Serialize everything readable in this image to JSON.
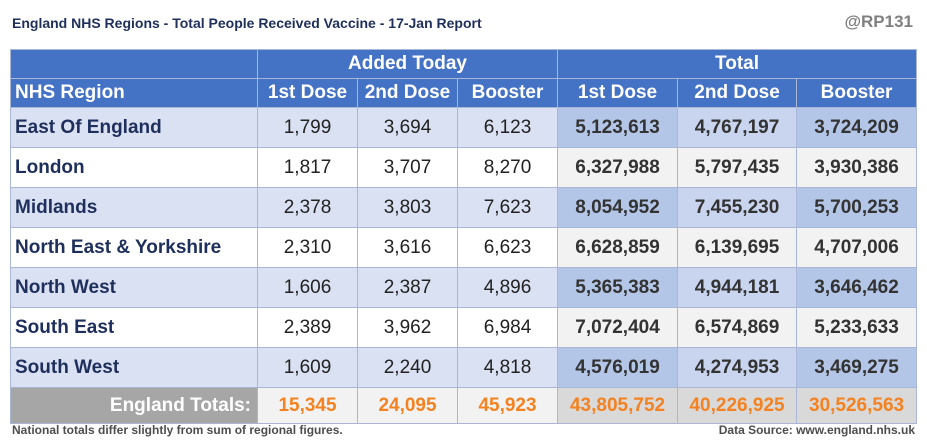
{
  "header": {
    "title": "England NHS Regions - Total People Received Vaccine - 17-Jan Report",
    "handle": "@RP131"
  },
  "table": {
    "group_added": "Added Today",
    "group_total": "Total",
    "columns": [
      "NHS Region",
      "1st Dose",
      "2nd Dose",
      "Booster",
      "1st Dose",
      "2nd Dose",
      "Booster"
    ],
    "rows": [
      [
        "East Of England",
        "1,799",
        "3,694",
        "6,123",
        "5,123,613",
        "4,767,197",
        "3,724,209"
      ],
      [
        "London",
        "1,817",
        "3,707",
        "8,270",
        "6,327,988",
        "5,797,435",
        "3,930,386"
      ],
      [
        "Midlands",
        "2,378",
        "3,803",
        "7,623",
        "8,054,952",
        "7,455,230",
        "5,700,253"
      ],
      [
        "North East & Yorkshire",
        "2,310",
        "3,616",
        "6,623",
        "6,628,859",
        "6,139,695",
        "4,707,006"
      ],
      [
        "North West",
        "1,606",
        "2,387",
        "4,896",
        "5,365,383",
        "4,944,181",
        "3,646,462"
      ],
      [
        "South East",
        "2,389",
        "3,962",
        "6,984",
        "7,072,404",
        "6,574,869",
        "5,233,633"
      ],
      [
        "South West",
        "1,609",
        "2,240",
        "4,818",
        "4,576,019",
        "4,274,953",
        "3,469,275"
      ]
    ],
    "totals": [
      "England Totals:",
      "15,345",
      "24,095",
      "45,923",
      "43,805,752",
      "40,226,925",
      "30,526,563"
    ]
  },
  "footer": {
    "note": "National totals differ slightly from sum of regional figures.",
    "source": "Data Source: www.england.nhs.uk"
  },
  "colors": {
    "header_bg": "#4472c4",
    "row_band": "#d9e1f2",
    "total_band": "#b4c6e7",
    "totals_text": "#f58220",
    "title_text": "#1f2f5c"
  }
}
